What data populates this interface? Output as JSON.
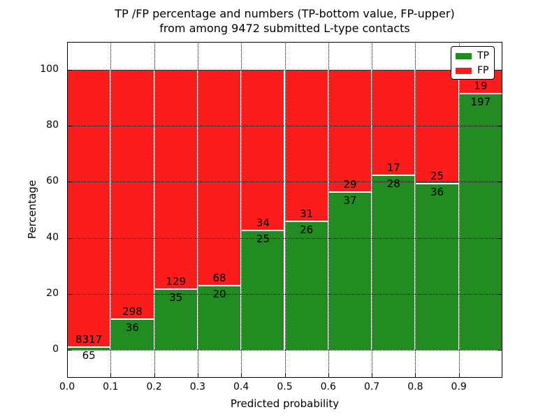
{
  "figure": {
    "title_line1": "TP /FP percentage and numbers (TP-bottom value, FP-upper)",
    "title_line2": "from among 9472 submitted L-type contacts"
  },
  "chart_data": {
    "type": "bar",
    "stacked": true,
    "percent_normalized": true,
    "title": "TP /FP percentage and numbers (TP-bottom value, FP-upper) from among 9472 submitted L-type contacts",
    "xlabel": "Predicted probability",
    "ylabel": "Percentage",
    "xlim": [
      0.0,
      1.0
    ],
    "ylim": [
      -10,
      110
    ],
    "bin_width": 0.1,
    "x_tick_labels": [
      "0.0",
      "0.1",
      "0.2",
      "0.3",
      "0.4",
      "0.5",
      "0.6",
      "0.7",
      "0.8",
      "0.9"
    ],
    "y_ticks": [
      0,
      20,
      40,
      60,
      80,
      100
    ],
    "grid": {
      "linestyle": "dotted",
      "color": "#000000",
      "axes": "both"
    },
    "legend": {
      "position": "upper right",
      "entries": [
        "TP",
        "FP"
      ]
    },
    "series": [
      {
        "name": "TP",
        "color": "#228B22",
        "counts": [
          65,
          36,
          35,
          20,
          25,
          26,
          37,
          28,
          36,
          197
        ]
      },
      {
        "name": "FP",
        "color": "#fc1c1c",
        "counts": [
          8317,
          298,
          129,
          68,
          34,
          31,
          29,
          17,
          25,
          19
        ]
      }
    ],
    "total_contacts": 9472,
    "annotation_note": "TP count shown below segment boundary, FP count shown above segment boundary"
  }
}
